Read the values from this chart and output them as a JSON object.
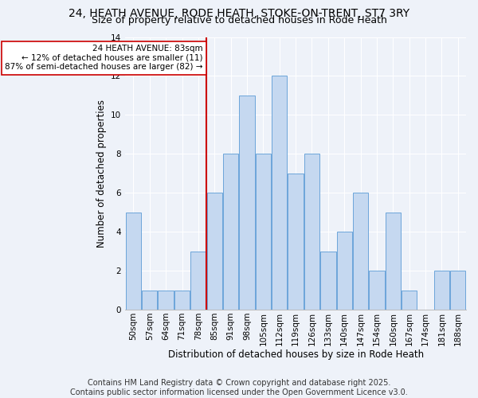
{
  "title_line1": "24, HEATH AVENUE, RODE HEATH, STOKE-ON-TRENT, ST7 3RY",
  "title_line2": "Size of property relative to detached houses in Rode Heath",
  "xlabel": "Distribution of detached houses by size in Rode Heath",
  "ylabel": "Number of detached properties",
  "categories": [
    "50sqm",
    "57sqm",
    "64sqm",
    "71sqm",
    "78sqm",
    "85sqm",
    "91sqm",
    "98sqm",
    "105sqm",
    "112sqm",
    "119sqm",
    "126sqm",
    "133sqm",
    "140sqm",
    "147sqm",
    "154sqm",
    "160sqm",
    "167sqm",
    "174sqm",
    "181sqm",
    "188sqm"
  ],
  "values": [
    5,
    1,
    1,
    1,
    3,
    6,
    8,
    11,
    8,
    12,
    7,
    8,
    3,
    4,
    6,
    2,
    5,
    1,
    0,
    2,
    2
  ],
  "bar_color": "#c5d8f0",
  "bar_edge_color": "#5b9bd5",
  "ref_line_index": 5,
  "ref_line_label": "24 HEATH AVENUE: 83sqm",
  "annotation_line2": "← 12% of detached houses are smaller (11)",
  "annotation_line3": "87% of semi-detached houses are larger (82) →",
  "annotation_box_color": "#ffffff",
  "annotation_box_edge_color": "#cc0000",
  "ref_line_color": "#cc0000",
  "ylim": [
    0,
    14
  ],
  "yticks": [
    0,
    2,
    4,
    6,
    8,
    10,
    12,
    14
  ],
  "footer_line1": "Contains HM Land Registry data © Crown copyright and database right 2025.",
  "footer_line2": "Contains public sector information licensed under the Open Government Licence v3.0.",
  "title_fontsize": 10,
  "subtitle_fontsize": 9,
  "axis_label_fontsize": 8.5,
  "tick_fontsize": 7.5,
  "annotation_fontsize": 7.5,
  "footer_fontsize": 7,
  "background_color": "#eef2f9"
}
